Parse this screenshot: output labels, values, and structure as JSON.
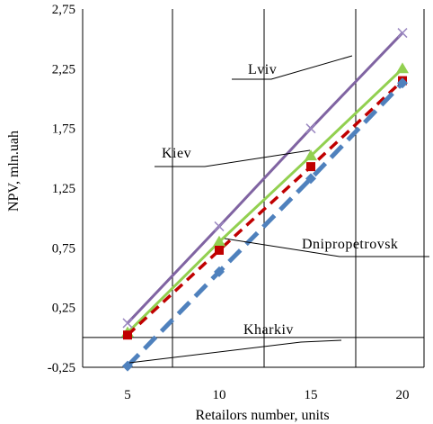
{
  "chart_data": {
    "type": "line",
    "x": [
      5,
      10,
      15,
      20
    ],
    "xlabel": "Retailors number, units",
    "ylabel": "NPV, mln.uah",
    "xlim": [
      5,
      20
    ],
    "ylim": [
      -0.25,
      2.75
    ],
    "yticks": [
      "2,75",
      "2,25",
      "1,75",
      "1,25",
      "0,75",
      "0,25",
      "-0,25"
    ],
    "xticks": [
      "5",
      "10",
      "15",
      "20"
    ],
    "grid": "vertical",
    "series": [
      {
        "name": "Lviv",
        "values": [
          0.12,
          0.93,
          1.75,
          2.55
        ],
        "color": "#8064a2",
        "style": "solid",
        "marker": "x-icon"
      },
      {
        "name": "Kiev",
        "values": [
          0.04,
          0.8,
          1.52,
          2.25
        ],
        "color": "#92d050",
        "style": "solid",
        "marker": "triangle-icon"
      },
      {
        "name": "Dnipropetrovsk",
        "values": [
          0.02,
          0.73,
          1.43,
          2.15
        ],
        "color": "#c00000",
        "style": "dashed",
        "marker": "square-icon"
      },
      {
        "name": "Kharkiv",
        "values": [
          -0.24,
          0.55,
          1.33,
          2.13
        ],
        "color": "#4f81bd",
        "style": "dashed",
        "marker": "diamond-icon"
      }
    ]
  }
}
